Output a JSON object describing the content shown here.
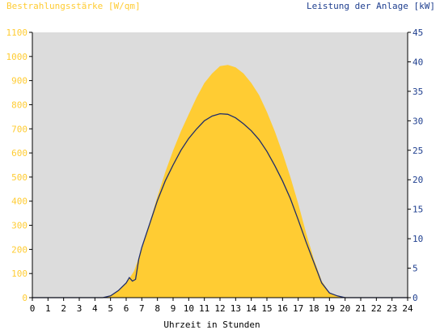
{
  "chart_data": {
    "type": "area",
    "title": "",
    "xlabel": "Uhrzeit in Stunden",
    "ylabel_left": "Bestrahlungsstärke [W/qm]",
    "ylabel_right": "Leistung der Anlage [kW]",
    "xlim": [
      0,
      24
    ],
    "ylim_left": [
      0,
      1100
    ],
    "ylim_right": [
      0,
      45
    ],
    "x_ticks": [
      "0",
      "1",
      "2",
      "3",
      "4",
      "5",
      "6",
      "7",
      "8",
      "9",
      "10",
      "11",
      "12",
      "13",
      "14",
      "15",
      "16",
      "17",
      "18",
      "19",
      "20",
      "21",
      "22",
      "23",
      "24"
    ],
    "y_ticks_left": [
      "0",
      "100",
      "200",
      "300",
      "400",
      "500",
      "600",
      "700",
      "800",
      "900",
      "1000",
      "1100"
    ],
    "y_ticks_right": [
      "0",
      "5",
      "10",
      "15",
      "20",
      "25",
      "30",
      "35",
      "40",
      "45"
    ],
    "grid": false,
    "colors": {
      "plot_background": "#dcdcdc",
      "irradiance_fill": "#ffcc33",
      "power_line": "#1f2d6b",
      "left_axis_text": "#ffcc33",
      "right_axis_text": "#1f3f8f",
      "axis": "#000000"
    },
    "series": [
      {
        "name": "Bestrahlungsstärke [W/qm]",
        "axis": "left",
        "x": [
          0,
          4.5,
          5,
          5.5,
          6,
          6.5,
          7,
          7.5,
          8,
          8.5,
          9,
          9.5,
          10,
          10.5,
          11,
          11.5,
          12,
          12.5,
          13,
          13.5,
          14,
          14.5,
          15,
          15.5,
          16,
          16.5,
          17,
          17.5,
          18,
          18.5,
          19,
          19.5,
          20,
          20.5,
          21,
          24
        ],
        "values": [
          0,
          0,
          10,
          30,
          60,
          110,
          200,
          310,
          420,
          520,
          610,
          690,
          760,
          830,
          890,
          930,
          960,
          965,
          955,
          930,
          890,
          840,
          770,
          690,
          600,
          500,
          390,
          270,
          160,
          70,
          20,
          5,
          0,
          0,
          0,
          0
        ]
      },
      {
        "name": "Leistung der Anlage [kW]",
        "axis": "right",
        "x": [
          0,
          4.5,
          5,
          5.5,
          6,
          6.2,
          6.4,
          6.6,
          6.8,
          7,
          7.5,
          8,
          8.5,
          9,
          9.5,
          10,
          10.5,
          11,
          11.5,
          12,
          12.5,
          13,
          13.5,
          14,
          14.5,
          15,
          15.5,
          16,
          16.5,
          17,
          17.5,
          18,
          18.5,
          19,
          19.5,
          20,
          20.5,
          21,
          24
        ],
        "values": [
          0,
          0,
          0.3,
          1.2,
          2.5,
          3.4,
          2.8,
          3.1,
          6.5,
          8.5,
          12.5,
          16.5,
          19.8,
          22.5,
          25,
          27,
          28.6,
          30,
          30.8,
          31.2,
          31.1,
          30.5,
          29.5,
          28.3,
          26.8,
          24.8,
          22.4,
          19.8,
          16.8,
          13.2,
          9.5,
          6,
          2.5,
          0.8,
          0.3,
          0,
          0,
          0,
          0
        ]
      }
    ]
  }
}
